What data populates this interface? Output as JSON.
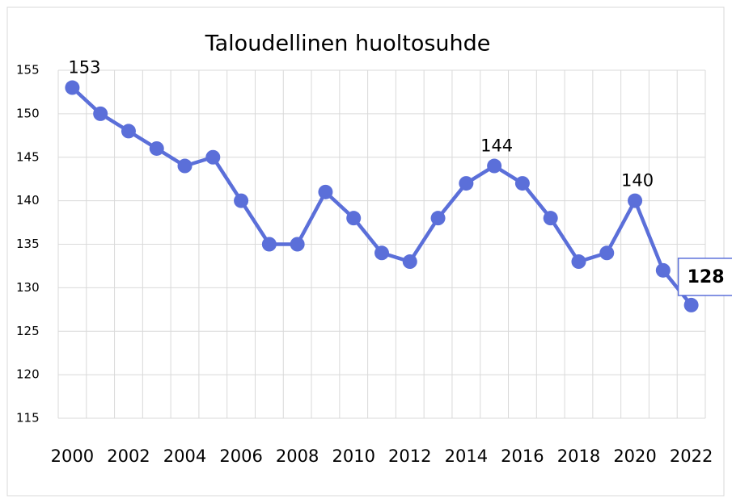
{
  "chart_data": {
    "type": "line",
    "title": "Taloudellinen huoltosuhde",
    "categories": [
      "2000",
      null,
      "2002",
      null,
      "2004",
      null,
      "2006",
      null,
      "2008",
      null,
      "2010",
      null,
      "2012",
      null,
      "2014",
      null,
      "2016",
      null,
      "2018",
      null,
      "2020",
      null,
      "2022"
    ],
    "series": [
      {
        "name": "Taloudellinen huoltosuhde",
        "color": "#5b6fd9",
        "values": [
          153,
          150,
          148,
          146,
          144,
          145,
          140,
          135,
          135,
          141,
          138,
          134,
          133,
          138,
          142,
          144,
          142,
          138,
          133,
          134,
          140,
          132,
          128
        ]
      }
    ],
    "ylim": [
      115,
      155
    ],
    "yticks": [
      115,
      120,
      125,
      130,
      135,
      140,
      145,
      150,
      155
    ],
    "grid": true,
    "data_labels": [
      0,
      15,
      20,
      22
    ],
    "boxed_label": 22
  }
}
